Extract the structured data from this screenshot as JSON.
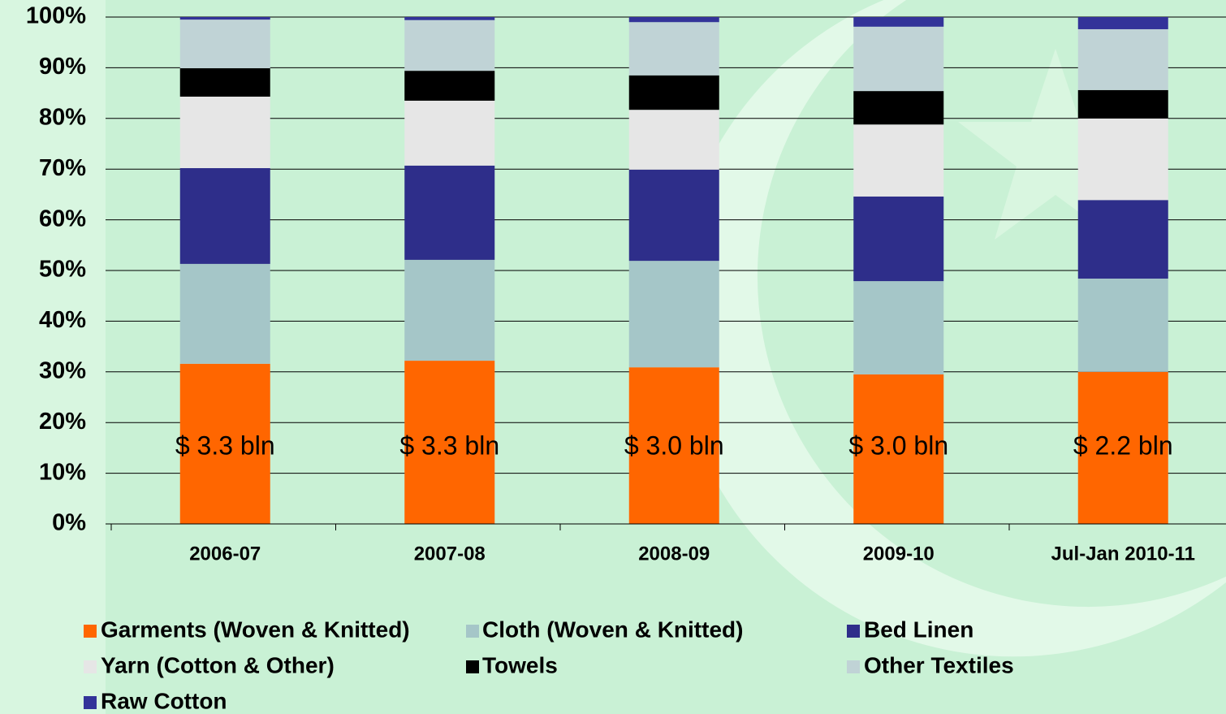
{
  "chart_data": {
    "type": "stacked_bar",
    "categories": [
      "2006-07",
      "2007-08",
      "2008-09",
      "2009-10",
      "Jul-Jan 2010-11"
    ],
    "series": [
      {
        "name": "Garments (Woven & Knitted)",
        "color": "#ff6600",
        "values": [
          31.6,
          32.2,
          30.9,
          29.5,
          30.0
        ]
      },
      {
        "name": "Cloth (Woven & Knitted)",
        "color": "#a5c6c8",
        "values": [
          19.7,
          19.9,
          21.0,
          18.4,
          18.4
        ]
      },
      {
        "name": "Bed Linen",
        "color": "#2e2e8a",
        "values": [
          18.9,
          18.6,
          18.0,
          16.7,
          15.5
        ]
      },
      {
        "name": "Yarn (Cotton & Other)",
        "color": "#e6e6e6",
        "values": [
          14.1,
          12.8,
          11.8,
          14.2,
          16.1
        ]
      },
      {
        "name": "Towels",
        "color": "#000000",
        "values": [
          5.6,
          5.9,
          6.8,
          6.6,
          5.6
        ]
      },
      {
        "name": "Other Textiles",
        "color": "#c0d3d6",
        "values": [
          9.6,
          10.0,
          10.5,
          12.7,
          12.0
        ]
      },
      {
        "name": "Raw Cotton",
        "color": "#333399",
        "values": [
          0.5,
          0.6,
          1.0,
          1.9,
          2.4
        ]
      }
    ],
    "annotations": [
      "$ 3.3 bln",
      "$ 3.3 bln",
      "$ 3.0 bln",
      "$ 3.0 bln",
      "$ 2.2 bln"
    ],
    "ylim": [
      0,
      100
    ],
    "yticks": [
      {
        "value": 0,
        "label": "0%"
      },
      {
        "value": 10,
        "label": "10%"
      },
      {
        "value": 20,
        "label": "20%"
      },
      {
        "value": 30,
        "label": "30%"
      },
      {
        "value": 40,
        "label": "40%"
      },
      {
        "value": 50,
        "label": "50%"
      },
      {
        "value": 60,
        "label": "60%"
      },
      {
        "value": 70,
        "label": "70%"
      },
      {
        "value": 80,
        "label": "80%"
      },
      {
        "value": 90,
        "label": "90%"
      },
      {
        "value": 100,
        "label": "100%"
      }
    ],
    "grid": true
  }
}
